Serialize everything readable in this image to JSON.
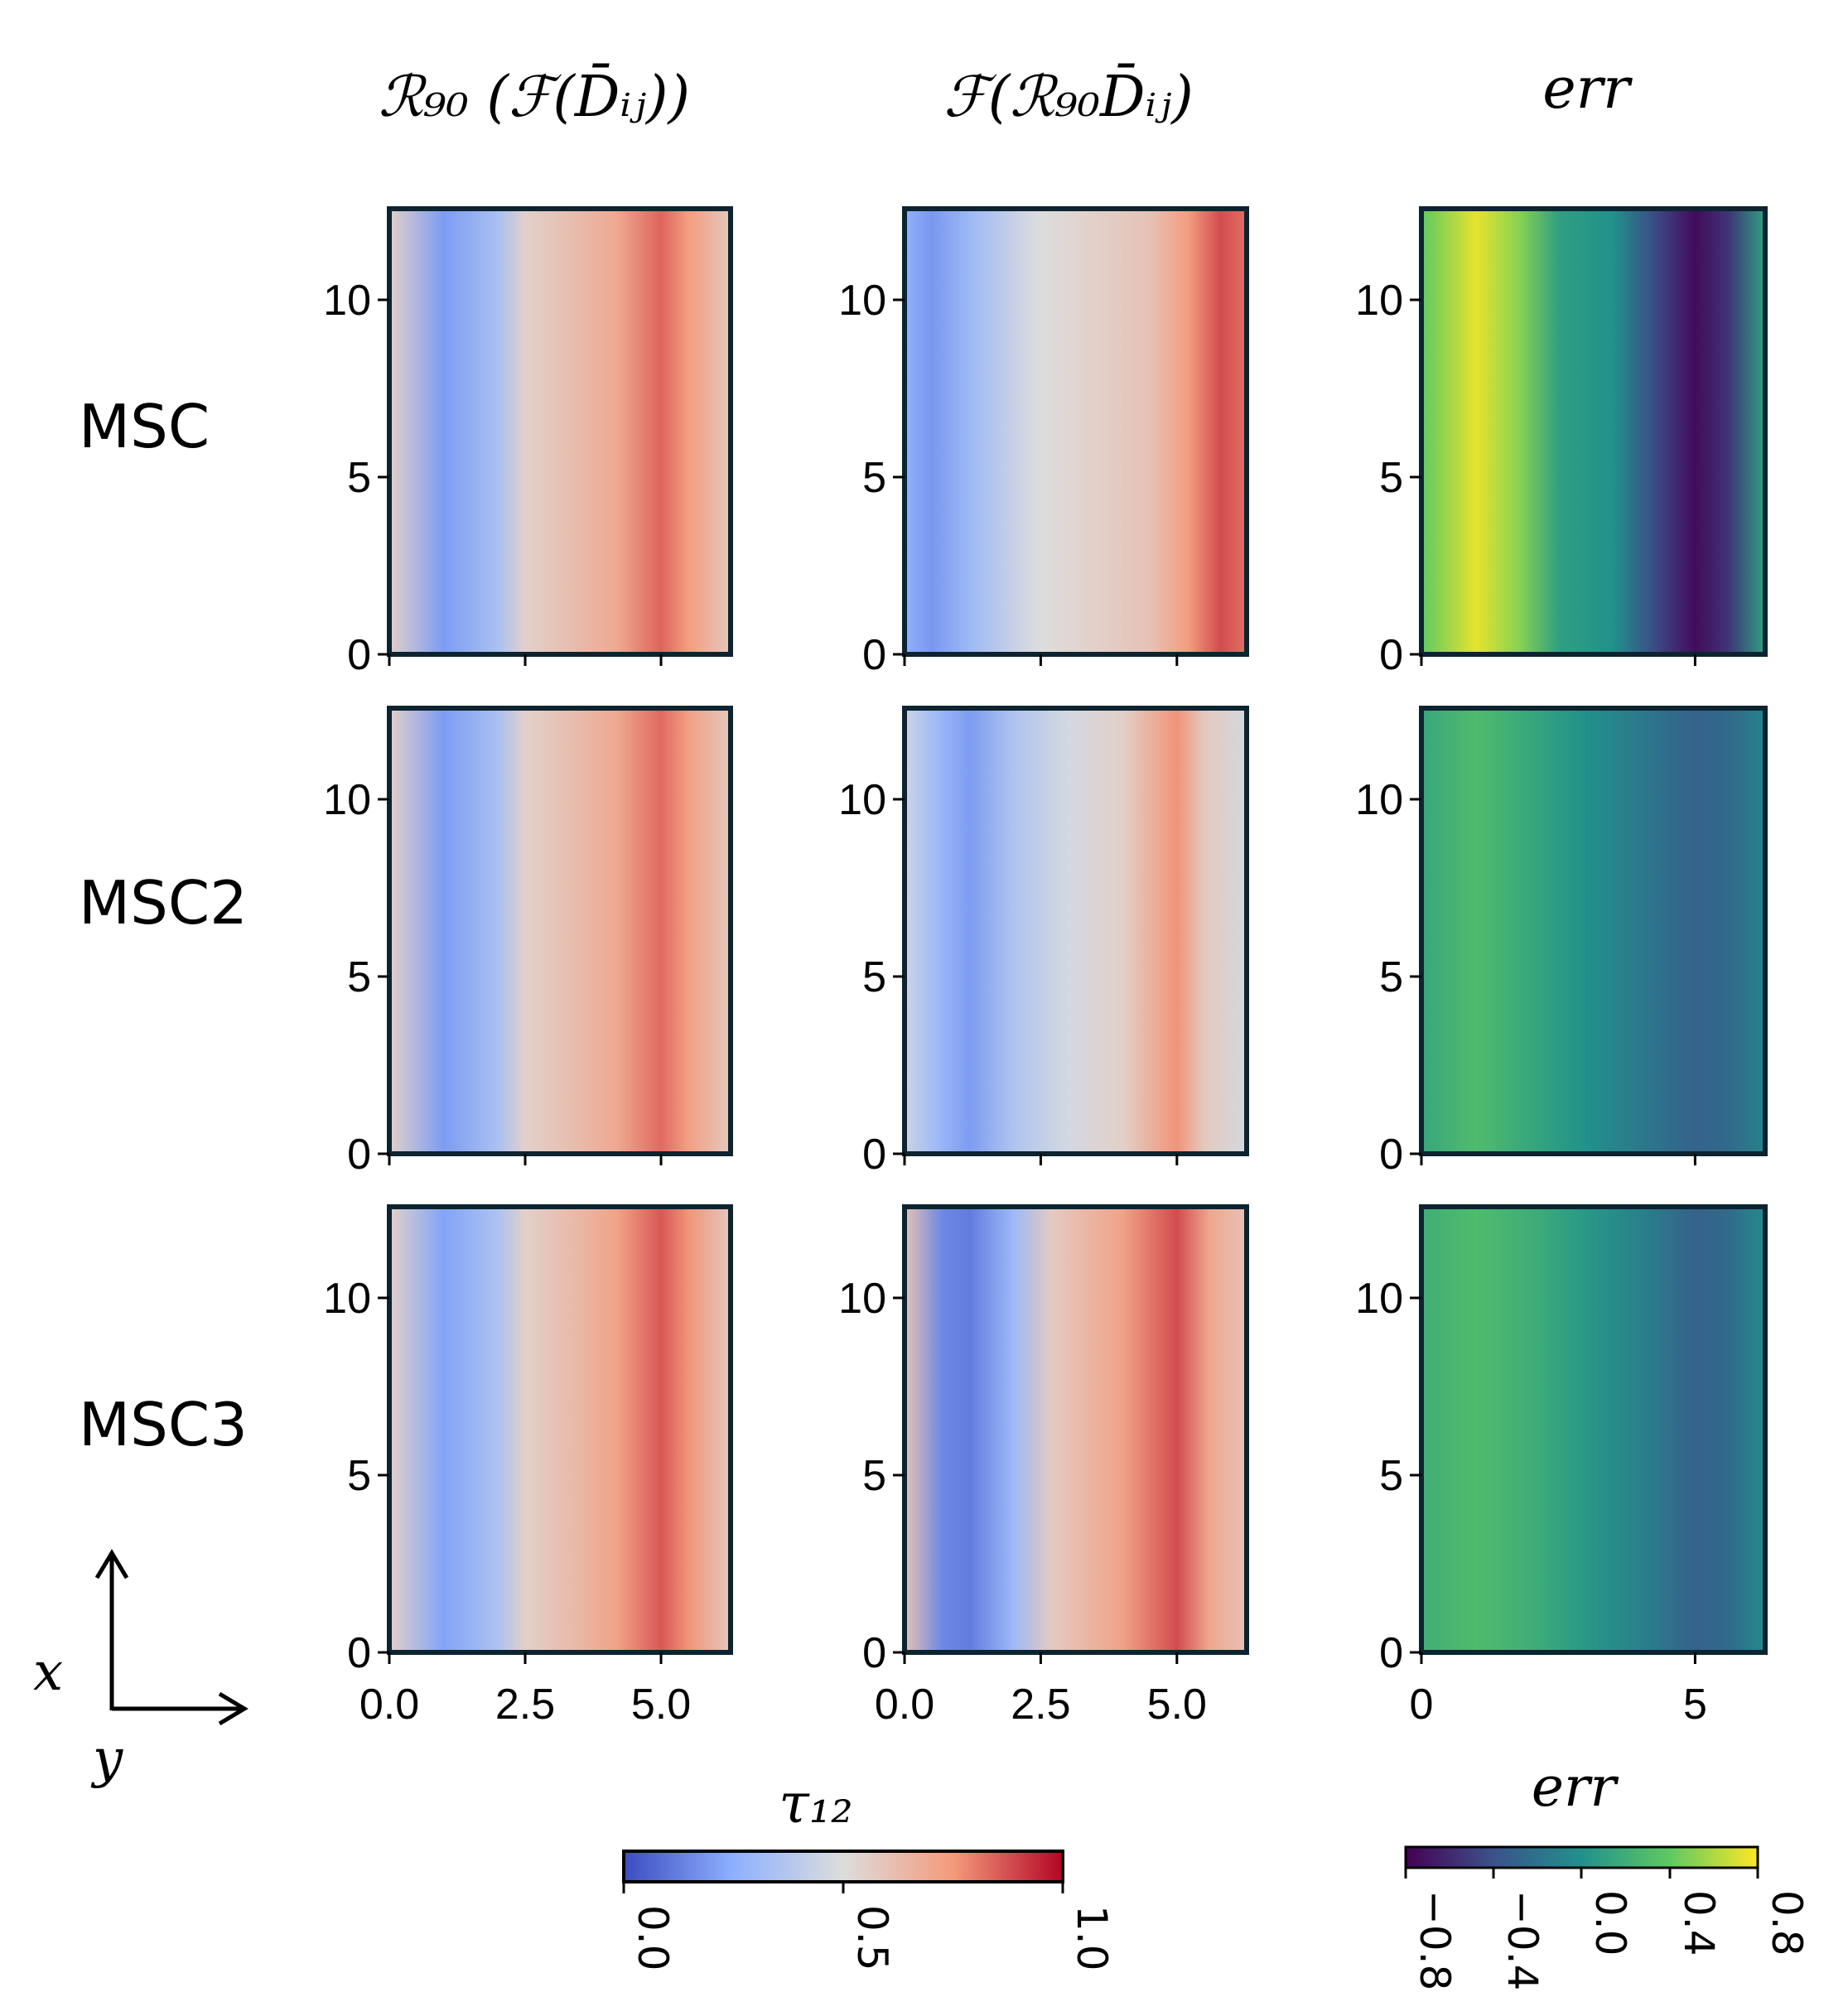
{
  "chart_data": {
    "type": "heatmap",
    "column_titles": [
      "ℛ₉₀ (ℱ(D̄ᵢⱼ))",
      "ℱ(ℛ₉₀D̄ᵢⱼ)",
      "err"
    ],
    "row_labels": [
      "MSC",
      "MSC2",
      "MSC3"
    ],
    "x_axis": {
      "label": "y",
      "range_tau": [
        0,
        6.28
      ],
      "ticks_tau": [
        "0.0",
        "2.5",
        "5.0"
      ],
      "ticks_err": [
        "0",
        "5"
      ]
    },
    "y_axis": {
      "label": "x",
      "range": [
        0,
        12.57
      ],
      "ticks": [
        "0",
        "5",
        "10"
      ]
    },
    "colorbars": [
      {
        "label": "τ₁₂",
        "colormap": "coolwarm",
        "range": [
          0.0,
          1.0
        ],
        "ticks": [
          "0.0",
          "0.5",
          "1.0"
        ]
      },
      {
        "label": "err",
        "colormap": "viridis",
        "range": [
          -0.8,
          0.8
        ],
        "ticks": [
          "−0.8",
          "−0.4",
          "0.0",
          "0.4",
          "0.8"
        ]
      }
    ],
    "panels": [
      {
        "row": "MSC",
        "column": 1,
        "field": "tau12",
        "profile_y": [
          0,
          1,
          2,
          2.5,
          3.5,
          4.2,
          5,
          5.5,
          6.28
        ],
        "profile_value": [
          0.55,
          0.2,
          0.34,
          0.55,
          0.63,
          0.7,
          0.84,
          0.74,
          0.58
        ]
      },
      {
        "row": "MSC",
        "column": 2,
        "field": "tau12",
        "profile_y": [
          0,
          0.5,
          1.2,
          2,
          2.5,
          3.5,
          4.5,
          5.2,
          5.8,
          6.28
        ],
        "profile_value": [
          0.26,
          0.19,
          0.3,
          0.43,
          0.5,
          0.55,
          0.6,
          0.74,
          0.88,
          0.82
        ]
      },
      {
        "row": "MSC",
        "column": 3,
        "field": "err",
        "profile_y": [
          0,
          1,
          1.8,
          2.5,
          3.5,
          4.3,
          5,
          5.6,
          6.28
        ],
        "profile_value": [
          0.4,
          0.74,
          0.5,
          0.1,
          0.0,
          -0.45,
          -0.75,
          -0.55,
          0.1
        ]
      },
      {
        "row": "MSC2",
        "column": 1,
        "field": "tau12",
        "profile_y": [
          0,
          1,
          2,
          2.5,
          3.5,
          4.2,
          5,
          5.5,
          6.28
        ],
        "profile_value": [
          0.55,
          0.2,
          0.34,
          0.55,
          0.63,
          0.7,
          0.83,
          0.73,
          0.58
        ]
      },
      {
        "row": "MSC2",
        "column": 2,
        "field": "tau12",
        "profile_y": [
          0,
          0.6,
          1.2,
          2,
          3,
          4,
          5,
          5.5,
          6.28
        ],
        "profile_value": [
          0.45,
          0.3,
          0.2,
          0.36,
          0.47,
          0.55,
          0.76,
          0.58,
          0.47
        ]
      },
      {
        "row": "MSC2",
        "column": 3,
        "field": "err",
        "profile_y": [
          0,
          1,
          2,
          3,
          4,
          5,
          5.6,
          6.28
        ],
        "profile_value": [
          0.15,
          0.3,
          0.15,
          0.0,
          -0.15,
          -0.3,
          -0.25,
          -0.1
        ]
      },
      {
        "row": "MSC3",
        "column": 1,
        "field": "tau12",
        "profile_y": [
          0,
          1,
          2,
          2.5,
          3.5,
          4.2,
          5,
          5.5,
          6.28
        ],
        "profile_value": [
          0.55,
          0.22,
          0.35,
          0.55,
          0.64,
          0.72,
          0.86,
          0.76,
          0.58
        ]
      },
      {
        "row": "MSC3",
        "column": 2,
        "field": "tau12",
        "profile_y": [
          0,
          0.7,
          1.2,
          2,
          2.7,
          4,
          5,
          5.6,
          6.28
        ],
        "profile_value": [
          0.6,
          0.15,
          0.12,
          0.3,
          0.57,
          0.72,
          0.88,
          0.7,
          0.6
        ]
      },
      {
        "row": "MSC3",
        "column": 3,
        "field": "err",
        "profile_y": [
          0,
          1,
          2,
          3,
          4,
          5,
          5.6,
          6.28
        ],
        "profile_value": [
          0.2,
          0.3,
          0.2,
          0.05,
          -0.1,
          -0.3,
          -0.25,
          -0.05
        ]
      }
    ]
  }
}
